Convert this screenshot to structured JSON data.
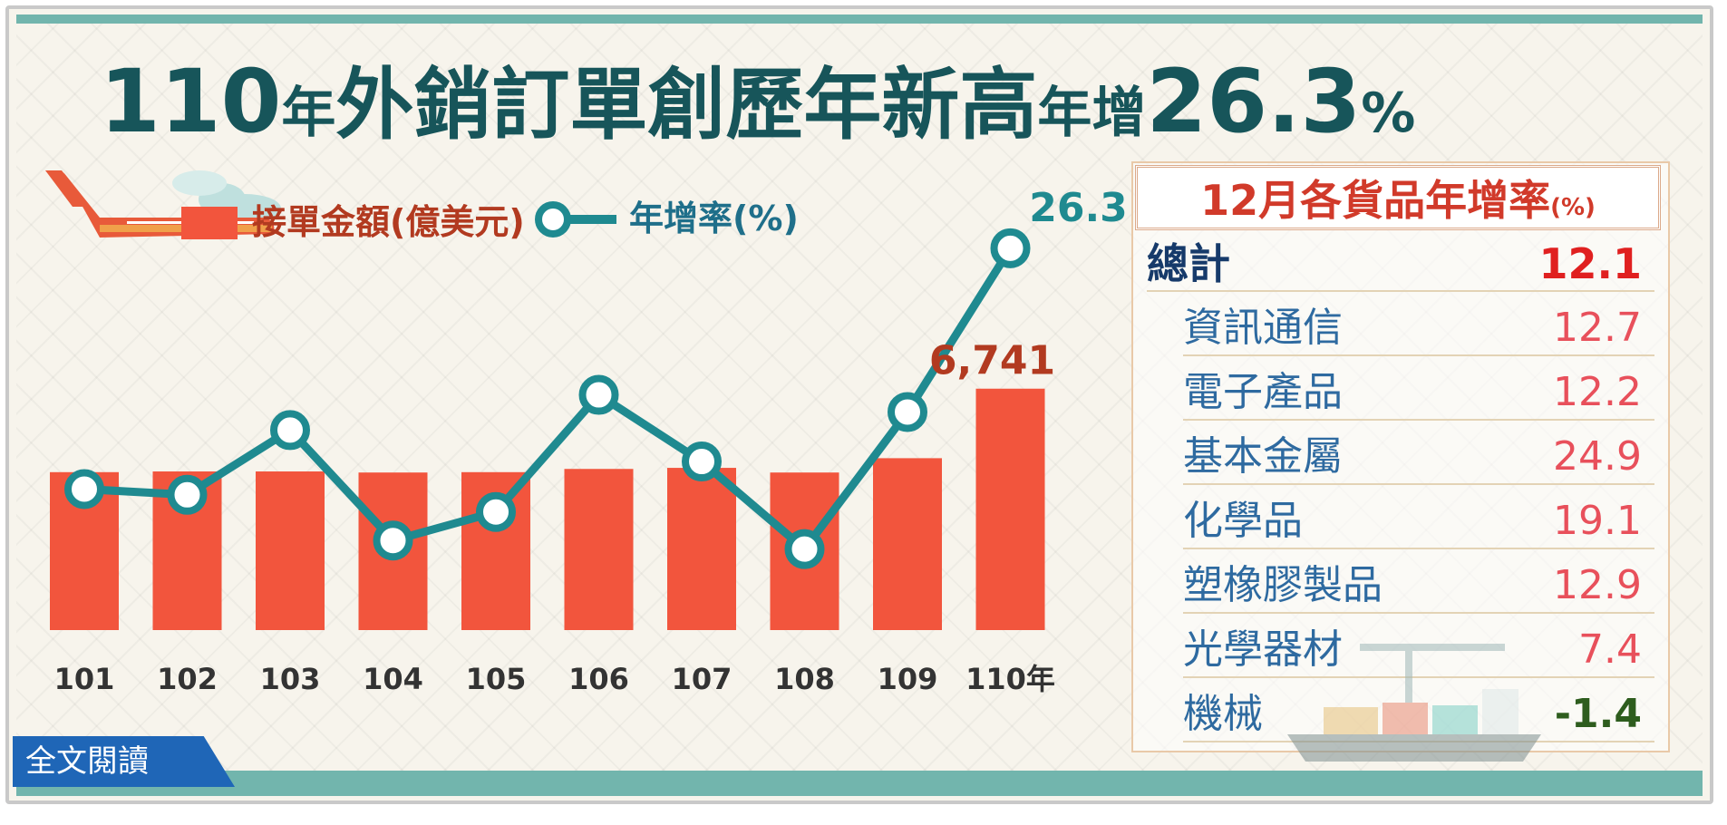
{
  "title": {
    "year_num": "110",
    "year_char": "年",
    "main": "外銷訂單創歷年新高",
    "sub": "年增",
    "growth": "26.3",
    "pct": "%"
  },
  "colors": {
    "bar": "#f2553d",
    "line": "#1f8a90",
    "title": "#17555a",
    "value_red": "#e8505b",
    "value_negative": "#2e5d1e"
  },
  "chart_data": {
    "type": "bar",
    "categories": [
      "101",
      "102",
      "103",
      "104",
      "105",
      "106",
      "107",
      "108",
      "109",
      "110年"
    ],
    "series": [
      {
        "name": "接單金額(億美元)",
        "type": "bar",
        "values": [
          4410,
          4430,
          4430,
          4400,
          4410,
          4500,
          4530,
          4400,
          4800,
          6741
        ],
        "labels": [
          "",
          "",
          "",
          "",
          "",
          "",
          "",
          "",
          "",
          "6,741"
        ]
      },
      {
        "name": "年增率(%)",
        "type": "line",
        "values": [
          1.0,
          0.4,
          7.2,
          -4.4,
          -1.4,
          10.9,
          3.9,
          -5.3,
          9.1,
          26.3
        ],
        "labels": [
          "",
          "",
          "",
          "",
          "",
          "",
          "",
          "",
          "",
          "26.3"
        ]
      }
    ],
    "legend": [
      "接單金額(億美元)",
      "年增率(%)"
    ],
    "legend_position": "top-left",
    "grid": false
  },
  "table": {
    "title": "12月各貨品年增率",
    "unit": "(%)",
    "rows": [
      {
        "label": "總計",
        "value": "12.1"
      },
      {
        "label": "資訊通信",
        "value": "12.7"
      },
      {
        "label": "電子產品",
        "value": "12.2"
      },
      {
        "label": "基本金屬",
        "value": "24.9"
      },
      {
        "label": "化學品",
        "value": "19.1"
      },
      {
        "label": "塑橡膠製品",
        "value": "12.9"
      },
      {
        "label": "光學器材",
        "value": "7.4"
      },
      {
        "label": "機械",
        "value": "-1.4"
      }
    ]
  },
  "full_text_link": "全文閱讀",
  "icons": [
    "airplane-icon",
    "cloud-icon",
    "cargo-ship-icon"
  ]
}
